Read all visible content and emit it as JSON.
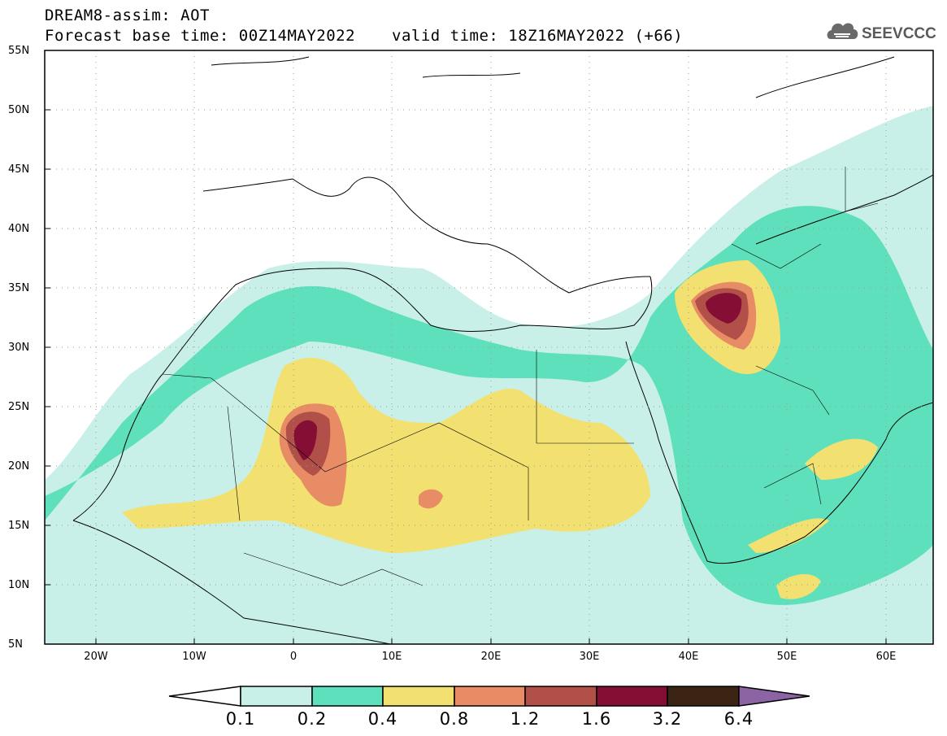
{
  "header": {
    "title": "DREAM8-assim: AOT",
    "base_time": "Forecast base time: 00Z14MAY2022",
    "valid_time": "valid time: 18Z16MAY2022 (+66)"
  },
  "logo": {
    "text": "SEEVCCC",
    "icon": "cloud-icon"
  },
  "map": {
    "lat_labels": [
      "55N",
      "50N",
      "45N",
      "40N",
      "35N",
      "30N",
      "25N",
      "20N",
      "15N",
      "10N",
      "5N"
    ],
    "lon_labels": [
      "20W",
      "10W",
      "0",
      "10E",
      "20E",
      "30E",
      "40E",
      "50E",
      "60E"
    ],
    "extent": {
      "lon_min": -25,
      "lon_max": 65,
      "lat_min": 5,
      "lat_max": 55
    }
  },
  "legend": {
    "thresholds": [
      "0.1",
      "0.2",
      "0.4",
      "0.8",
      "1.2",
      "1.6",
      "3.2",
      "6.4"
    ],
    "colors": [
      "#ffffff",
      "#c8f0e8",
      "#5ee0bc",
      "#f2e070",
      "#e88c66",
      "#b05048",
      "#840e34",
      "#3c2414",
      "#8c64a4"
    ]
  }
}
